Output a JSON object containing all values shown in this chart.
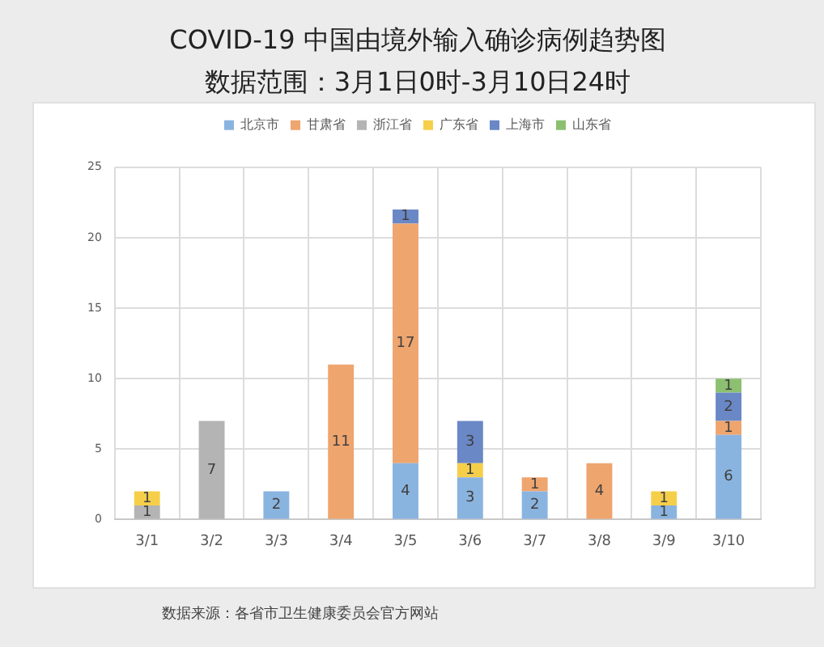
{
  "chart_data": {
    "type": "bar",
    "title": "COVID-19 中国由境外输入确诊病例趋势图",
    "subtitle": "数据范围：3月1日0时-3月10日24时",
    "categories": [
      "3/1",
      "3/2",
      "3/3",
      "3/4",
      "3/5",
      "3/6",
      "3/7",
      "3/8",
      "3/9",
      "3/10"
    ],
    "stacked": true,
    "series": [
      {
        "name": "北京市",
        "color": "#8ab4e0",
        "values": [
          null,
          null,
          2,
          null,
          4,
          3,
          2,
          null,
          1,
          6
        ]
      },
      {
        "name": "甘肃省",
        "color": "#eea56e",
        "values": [
          null,
          null,
          null,
          11,
          17,
          null,
          1,
          4,
          null,
          1
        ]
      },
      {
        "name": "浙江省",
        "color": "#b4b4b4",
        "values": [
          1,
          7,
          null,
          null,
          null,
          null,
          null,
          null,
          null,
          null
        ]
      },
      {
        "name": "广东省",
        "color": "#f6cf4a",
        "values": [
          1,
          null,
          null,
          null,
          null,
          1,
          null,
          null,
          1,
          null
        ]
      },
      {
        "name": "上海市",
        "color": "#6a87c6",
        "values": [
          null,
          null,
          null,
          null,
          1,
          3,
          null,
          null,
          null,
          2
        ]
      },
      {
        "name": "山东省",
        "color": "#8cc070",
        "values": [
          null,
          null,
          null,
          null,
          null,
          null,
          null,
          null,
          null,
          1
        ]
      }
    ],
    "ylim": [
      0,
      25
    ],
    "yticks": [
      0,
      5,
      10,
      15,
      20,
      25
    ],
    "grid": true,
    "legend": "top",
    "data_labels": true,
    "annotations": [
      "数据来源：各省市卫生健康委员会官方网站"
    ]
  }
}
